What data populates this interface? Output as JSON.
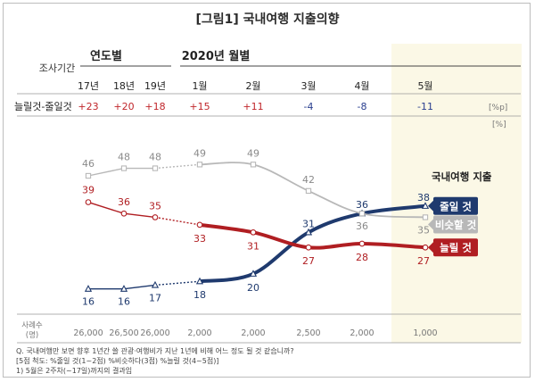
{
  "figure": {
    "title": "[그림1] 국내여행 지출의향",
    "header_survey": "조사기간",
    "header_yearly": "연도별",
    "header_monthly": "2020년 월별",
    "net_label": "늘릴것-줄일것",
    "net_unit": "[%p]",
    "value_unit": "[%]",
    "legend_title": "국내여행 지출",
    "sample_label_1": "사례수",
    "sample_label_2": "(명)",
    "footnotes": [
      "Q. 국내여행만 보면 향후 1년간 쓸 관광·여행비가 지난 1년에 비해 어느 정도 될 것 같습니까?",
      "[5점 척도: %줄일 것(1~2점) %비슷하다(3점) %늘릴 것(4~5점)]",
      "1) 5월은 2주차(~17일)까지의 결과임"
    ]
  },
  "colors": {
    "decrease": "#1f3a6e",
    "similar": "#b8b8b8",
    "increase": "#b01e22",
    "highlight": "#fbf8e6",
    "title_bracket": "#b01e22",
    "net_positive": "#c0262b",
    "net_negative": "#2a3f8f"
  },
  "chart_data": {
    "type": "line",
    "title": "[그림1] 국내여행 지출의향",
    "categories": [
      "17년",
      "18년",
      "19년",
      "1월",
      "2월",
      "3월",
      "4월",
      "5월"
    ],
    "net_values": [
      "+23",
      "+20",
      "+18",
      "+15",
      "+11",
      "-4",
      "-8",
      "-11"
    ],
    "sample_sizes": [
      "26,000",
      "26,500",
      "26,000",
      "2,000",
      "2,000",
      "2,500",
      "2,000",
      "1,000"
    ],
    "series": [
      {
        "name": "줄일 것",
        "values": [
          16,
          16,
          17,
          18,
          20,
          31,
          36,
          38
        ]
      },
      {
        "name": "비슷할 것",
        "values": [
          46,
          48,
          48,
          49,
          49,
          42,
          36,
          35
        ]
      },
      {
        "name": "늘릴 것",
        "values": [
          39,
          36,
          35,
          33,
          31,
          27,
          28,
          27
        ]
      }
    ],
    "ylim": [
      10,
      55
    ],
    "legend": "right",
    "highlighted_category": "5월"
  }
}
